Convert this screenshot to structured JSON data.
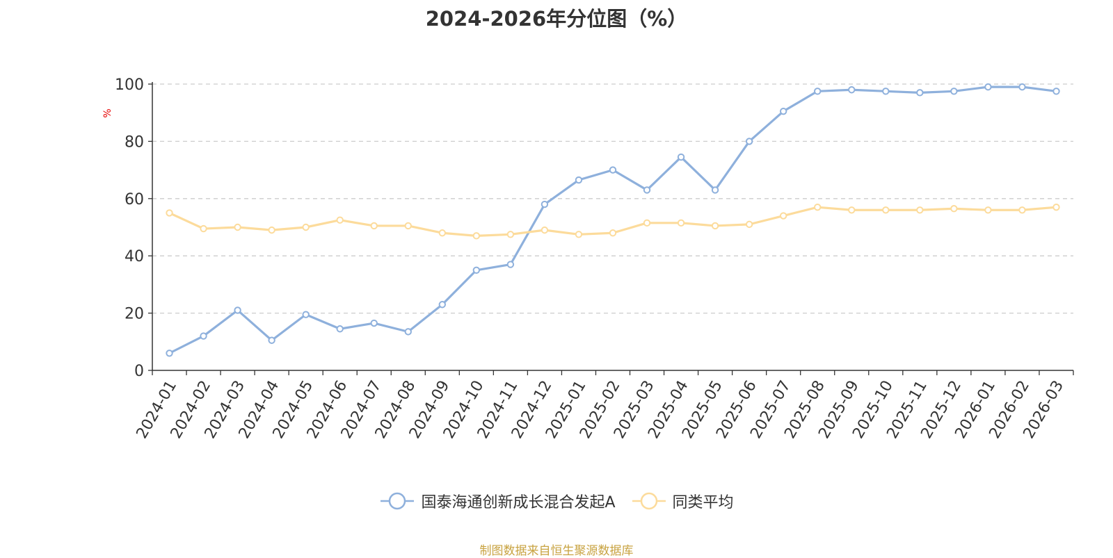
{
  "chart_data": {
    "type": "line",
    "title": "2024-2026年分位图（%）",
    "ylabel": "%",
    "xlabel": "",
    "ylim": [
      0,
      100
    ],
    "yticks": [
      0,
      20,
      40,
      60,
      80,
      100
    ],
    "grid": true,
    "legend_position": "bottom-center",
    "categories": [
      "2024-01",
      "2024-02",
      "2024-03",
      "2024-04",
      "2024-05",
      "2024-06",
      "2024-07",
      "2024-08",
      "2024-09",
      "2024-10",
      "2024-11",
      "2024-12",
      "2025-01",
      "2025-02",
      "2025-03",
      "2025-04",
      "2025-05",
      "2025-06",
      "2025-07",
      "2025-08",
      "2025-09",
      "2025-10",
      "2025-11",
      "2025-12",
      "2026-01",
      "2026-02",
      "2026-03"
    ],
    "series": [
      {
        "name": "国泰海通创新成长混合发起A",
        "color": "#8eb0dc",
        "values": [
          6,
          12,
          21,
          10.5,
          19.5,
          14.5,
          16.5,
          13.5,
          23,
          35,
          37,
          58,
          66.5,
          70,
          63,
          74.5,
          63,
          80,
          90.5,
          97.5,
          98,
          97.5,
          97,
          97.5,
          99,
          99,
          97.5
        ]
      },
      {
        "name": "同类平均",
        "color": "#fcdb9b",
        "values": [
          55,
          49.5,
          50,
          49,
          50,
          52.5,
          50.5,
          50.5,
          48,
          47,
          47.5,
          49,
          47.5,
          48,
          51.5,
          51.5,
          50.5,
          51,
          54,
          57,
          56,
          56,
          56,
          56.5,
          56,
          56,
          57
        ]
      }
    ]
  },
  "source_note": "制图数据来自恒生聚源数据库",
  "colors": {
    "ylabel_color": "#e60000",
    "grid_color": "#cccccc",
    "axis_color": "#333333",
    "source_note_color": "#c8a341"
  }
}
